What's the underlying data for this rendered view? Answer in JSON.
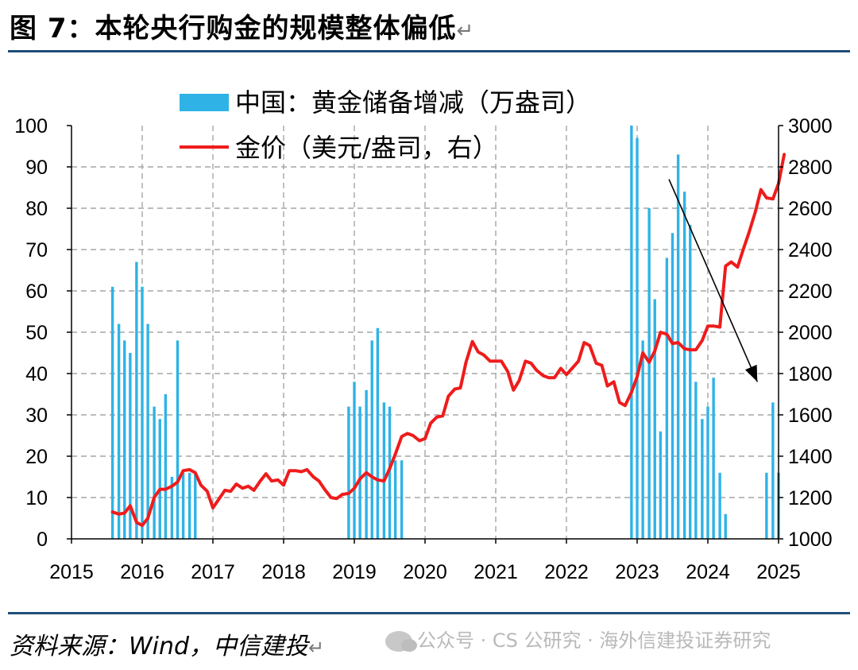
{
  "header": {
    "title": "图 7：本轮央行购金的规模整体偏低",
    "return_mark": "↵"
  },
  "footer": {
    "source": "资料来源：Wind，中信建投",
    "return_mark": "↵"
  },
  "watermark": {
    "text": "公众号 · CS 公研究 · 海外信建投证券研究"
  },
  "chart_data": {
    "type": "bar+line",
    "title": "",
    "legend": [
      {
        "label": "中国：黄金储备增减（万盎司）",
        "color": "#2fb3e6",
        "kind": "bar"
      },
      {
        "label": "金价（美元/盎司，右）",
        "color": "#ee1c1c",
        "kind": "line"
      }
    ],
    "x_range": [
      2015,
      2025
    ],
    "x_ticks": [
      "2015",
      "2016",
      "2017",
      "2018",
      "2019",
      "2020",
      "2021",
      "2022",
      "2023",
      "2024",
      "2025"
    ],
    "y_left": {
      "range": [
        0,
        100
      ],
      "ticks": [
        "0",
        "10",
        "20",
        "30",
        "40",
        "50",
        "60",
        "70",
        "80",
        "90",
        "100"
      ]
    },
    "y_right": {
      "range": [
        1000,
        3000
      ],
      "ticks": [
        "1000",
        "1200",
        "1400",
        "1600",
        "1800",
        "2000",
        "2200",
        "2400",
        "2600",
        "2800",
        "3000"
      ]
    },
    "grid": true,
    "bars": {
      "name": "中国：黄金储备增减（万盎司）",
      "x": [
        2015.58,
        2015.67,
        2015.75,
        2015.83,
        2015.92,
        2016.0,
        2016.08,
        2016.17,
        2016.25,
        2016.33,
        2016.42,
        2016.5,
        2016.58,
        2016.67,
        2016.75,
        2018.92,
        2019.0,
        2019.08,
        2019.17,
        2019.25,
        2019.33,
        2019.42,
        2019.5,
        2019.58,
        2019.67,
        2022.92,
        2023.0,
        2023.08,
        2023.17,
        2023.25,
        2023.33,
        2023.42,
        2023.5,
        2023.58,
        2023.67,
        2023.75,
        2023.83,
        2023.92,
        2024.0,
        2024.08,
        2024.17,
        2024.25,
        2024.33,
        2024.83,
        2024.92,
        2025.0
      ],
      "values": [
        61,
        52,
        48,
        45,
        67,
        61,
        52,
        32,
        29,
        35,
        15,
        48,
        16,
        16,
        16,
        32,
        38,
        32,
        36,
        48,
        51,
        33,
        32,
        19,
        19,
        100,
        97,
        48,
        80,
        58,
        26,
        68,
        74,
        93,
        84,
        76,
        38,
        29,
        32,
        39,
        16,
        6,
        0,
        16,
        33,
        16
      ]
    },
    "line": {
      "name": "金价（美元/盎司，右）",
      "x": [
        2015.58,
        2015.67,
        2015.75,
        2015.83,
        2015.92,
        2016.0,
        2016.08,
        2016.17,
        2016.25,
        2016.33,
        2016.42,
        2016.5,
        2016.58,
        2016.67,
        2016.75,
        2016.83,
        2016.92,
        2017.0,
        2017.08,
        2017.17,
        2017.25,
        2017.33,
        2017.42,
        2017.5,
        2017.58,
        2017.67,
        2017.75,
        2017.83,
        2017.92,
        2018.0,
        2018.08,
        2018.17,
        2018.25,
        2018.33,
        2018.42,
        2018.5,
        2018.58,
        2018.67,
        2018.75,
        2018.83,
        2018.92,
        2019.0,
        2019.08,
        2019.17,
        2019.25,
        2019.33,
        2019.42,
        2019.5,
        2019.58,
        2019.67,
        2019.75,
        2019.83,
        2019.92,
        2020.0,
        2020.08,
        2020.17,
        2020.25,
        2020.33,
        2020.42,
        2020.5,
        2020.58,
        2020.67,
        2020.75,
        2020.83,
        2020.92,
        2021.0,
        2021.08,
        2021.17,
        2021.25,
        2021.33,
        2021.42,
        2021.5,
        2021.58,
        2021.67,
        2021.75,
        2021.83,
        2021.92,
        2022.0,
        2022.08,
        2022.17,
        2022.25,
        2022.33,
        2022.42,
        2022.5,
        2022.58,
        2022.67,
        2022.75,
        2022.83,
        2022.92,
        2023.0,
        2023.08,
        2023.17,
        2023.25,
        2023.33,
        2023.42,
        2023.5,
        2023.58,
        2023.67,
        2023.75,
        2023.83,
        2023.92,
        2024.0,
        2024.08,
        2024.17,
        2024.25,
        2024.33,
        2024.42,
        2024.5,
        2024.58,
        2024.67,
        2024.75,
        2024.83,
        2024.92,
        2025.0,
        2025.08
      ],
      "values": [
        1130,
        1120,
        1125,
        1160,
        1080,
        1065,
        1100,
        1200,
        1240,
        1240,
        1255,
        1275,
        1330,
        1335,
        1320,
        1260,
        1230,
        1150,
        1190,
        1235,
        1230,
        1265,
        1245,
        1255,
        1235,
        1280,
        1315,
        1280,
        1285,
        1260,
        1330,
        1330,
        1325,
        1335,
        1300,
        1280,
        1240,
        1200,
        1195,
        1215,
        1220,
        1245,
        1290,
        1320,
        1300,
        1285,
        1280,
        1340,
        1410,
        1495,
        1510,
        1500,
        1475,
        1485,
        1560,
        1590,
        1595,
        1690,
        1725,
        1730,
        1855,
        1955,
        1905,
        1890,
        1860,
        1860,
        1860,
        1810,
        1720,
        1765,
        1860,
        1850,
        1815,
        1790,
        1780,
        1780,
        1825,
        1795,
        1825,
        1860,
        1950,
        1935,
        1850,
        1840,
        1740,
        1760,
        1660,
        1645,
        1710,
        1785,
        1900,
        1855,
        1910,
        2000,
        1990,
        1945,
        1950,
        1920,
        1915,
        1915,
        1960,
        2030,
        2030,
        2025,
        2320,
        2340,
        2315,
        2400,
        2480,
        2580,
        2690,
        2650,
        2645,
        2720,
        2860
      ],
      "color": "#ee1c1c"
    },
    "annotation": {
      "type": "arrow",
      "from": {
        "x": 2023.45,
        "y_left": 87
      },
      "to": {
        "x": 2024.7,
        "y_left": 38
      },
      "color": "#000000"
    }
  }
}
